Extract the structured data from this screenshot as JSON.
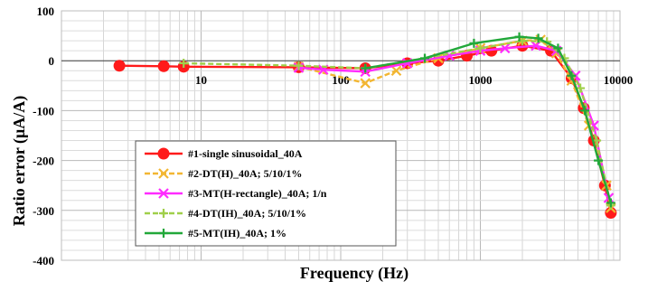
{
  "chart_data": {
    "type": "line",
    "title": "",
    "xlabel": "Frequency (Hz)",
    "ylabel": "Ratio error (μA/A)",
    "xscale": "log",
    "xlim": [
      1,
      10000
    ],
    "ylim": [
      -400,
      100
    ],
    "x_tick_labels": [
      "10",
      "100",
      "1000",
      "10000"
    ],
    "y_tick_labels": [
      "100",
      "0",
      "-100",
      "-200",
      "-300",
      "-400"
    ],
    "grid": true,
    "legend_position": "bottom-left",
    "series": [
      {
        "name": "#1-single sinusoidal_40A",
        "color": "#ff1a1a",
        "marker": "circle",
        "x": [
          2.6,
          5.4,
          7.5,
          50,
          150,
          300,
          500,
          800,
          1200,
          2000,
          3200,
          4500,
          5500,
          6500,
          7800,
          8600
        ],
        "y": [
          -10,
          -11,
          -12,
          -13,
          -15,
          -5,
          0,
          10,
          20,
          30,
          20,
          -35,
          -95,
          -160,
          -250,
          -305
        ]
      },
      {
        "name": "#2-DT(H)_40A; 5/10/1%",
        "color": "#f2b632",
        "marker": "x",
        "x": [
          50,
          150,
          250,
          500,
          1000,
          2000,
          2700,
          3500,
          4500,
          6000,
          8000,
          8600
        ],
        "y": [
          -12,
          -45,
          -20,
          5,
          25,
          40,
          42,
          15,
          -40,
          -130,
          -250,
          -295
        ]
      },
      {
        "name": "#3-MT(H-rectangle)_40A; 1/n",
        "color": "#ff2bff",
        "marker": "x",
        "x": [
          50,
          75,
          150,
          300,
          600,
          1000,
          1500,
          2500,
          3500,
          4800,
          6500,
          8300
        ],
        "y": [
          -14,
          -18,
          -22,
          -5,
          10,
          20,
          25,
          30,
          20,
          -30,
          -130,
          -275
        ]
      },
      {
        "name": "#4-DT(IH)_40A; 5/10/1%",
        "color": "#a0cf4a",
        "marker": "plus",
        "x": [
          7.5,
          50,
          150,
          400,
          1000,
          2000,
          3000,
          4000,
          5200,
          6800,
          8600
        ],
        "y": [
          -5,
          -10,
          -15,
          5,
          25,
          40,
          38,
          5,
          -55,
          -160,
          -290
        ]
      },
      {
        "name": "#5-MT(IH)_40A; 1%",
        "color": "#22a83a",
        "marker": "plus",
        "x": [
          150,
          400,
          900,
          1900,
          2600,
          3600,
          4500,
          5600,
          7000,
          8600
        ],
        "y": [
          -15,
          5,
          35,
          48,
          45,
          25,
          -30,
          -100,
          -200,
          -285
        ]
      }
    ]
  }
}
